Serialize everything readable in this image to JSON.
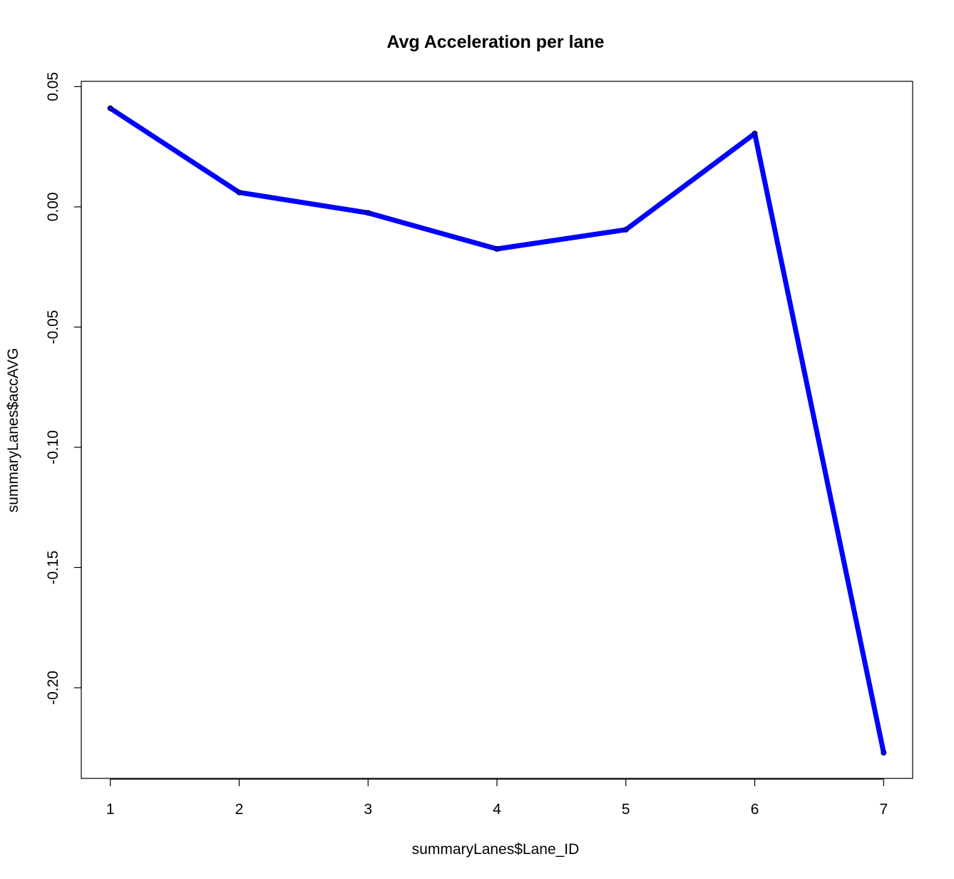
{
  "chart_data": {
    "type": "line",
    "title": "Avg Acceleration per lane",
    "xlabel": "summaryLanes$Lane_ID",
    "ylabel": "summaryLanes$accAVG",
    "x": [
      1,
      2,
      3,
      4,
      5,
      6,
      7
    ],
    "x_ticks": [
      1,
      2,
      3,
      4,
      5,
      6,
      7
    ],
    "x_tick_labels": [
      "1",
      "2",
      "3",
      "4",
      "5",
      "6",
      "7"
    ],
    "y_ticks": [
      0.05,
      0.0,
      -0.05,
      -0.1,
      -0.15,
      -0.2
    ],
    "y_tick_labels": [
      "0.05",
      "0.00",
      "-0.05",
      "-0.10",
      "-0.15",
      "-0.20"
    ],
    "xlim": [
      0.775,
      7.225
    ],
    "ylim": [
      -0.2377,
      0.0522
    ],
    "series": [
      {
        "values": [
          0.041,
          0.006,
          -0.0025,
          -0.0175,
          -0.0095,
          0.0305,
          -0.227
        ],
        "color": "#0000ff"
      }
    ],
    "grid": false,
    "legend": "none"
  }
}
